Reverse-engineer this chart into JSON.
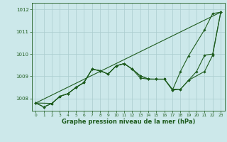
{
  "title": "Graphe pression niveau de la mer (hPa)",
  "bg_color": "#cce8ea",
  "grid_color": "#aaccce",
  "line_color": "#1e5c1e",
  "ylim": [
    1007.45,
    1012.3
  ],
  "xlim": [
    -0.5,
    23.5
  ],
  "yticks": [
    1008,
    1009,
    1010,
    1011,
    1012
  ],
  "xticks": [
    0,
    1,
    2,
    3,
    4,
    5,
    6,
    7,
    8,
    9,
    10,
    11,
    12,
    13,
    14,
    15,
    16,
    17,
    18,
    19,
    20,
    21,
    22,
    23
  ],
  "line1_x": [
    0,
    1,
    2,
    3,
    4,
    5,
    6,
    7,
    8,
    9,
    10,
    11,
    12,
    13,
    14,
    15,
    16,
    17,
    18,
    19,
    21,
    22,
    23
  ],
  "line1_y": [
    1007.8,
    1007.62,
    1007.78,
    1008.1,
    1008.22,
    1008.5,
    1008.72,
    1009.32,
    1009.25,
    1009.1,
    1009.47,
    1009.57,
    1009.32,
    1008.92,
    1008.87,
    1008.87,
    1008.87,
    1008.38,
    1009.22,
    1009.92,
    1011.1,
    1011.82,
    1011.88
  ],
  "line2_x": [
    0,
    1,
    2,
    3,
    4,
    5,
    6,
    7,
    8,
    9,
    10,
    11,
    12,
    13,
    14,
    15,
    16,
    17,
    18,
    19,
    21,
    22,
    23
  ],
  "line2_y": [
    1007.8,
    1007.62,
    1007.78,
    1008.1,
    1008.22,
    1008.5,
    1008.72,
    1009.32,
    1009.25,
    1009.1,
    1009.47,
    1009.57,
    1009.32,
    1009.02,
    1008.87,
    1008.87,
    1008.87,
    1008.38,
    1008.42,
    1008.82,
    1009.22,
    1009.95,
    1011.88
  ],
  "line3_x": [
    0,
    2,
    3,
    4,
    5,
    6,
    7,
    8,
    9,
    10,
    11,
    12,
    13,
    14,
    15,
    16,
    17,
    18,
    19,
    20,
    21,
    22,
    23
  ],
  "line3_y": [
    1007.8,
    1007.78,
    1008.1,
    1008.22,
    1008.5,
    1008.72,
    1009.32,
    1009.25,
    1009.1,
    1009.47,
    1009.57,
    1009.32,
    1009.02,
    1008.88,
    1008.87,
    1008.87,
    1008.42,
    1008.42,
    1008.82,
    1009.22,
    1009.95,
    1010.0,
    1011.88
  ],
  "line4_x": [
    0,
    23
  ],
  "line4_y": [
    1007.8,
    1011.88
  ]
}
